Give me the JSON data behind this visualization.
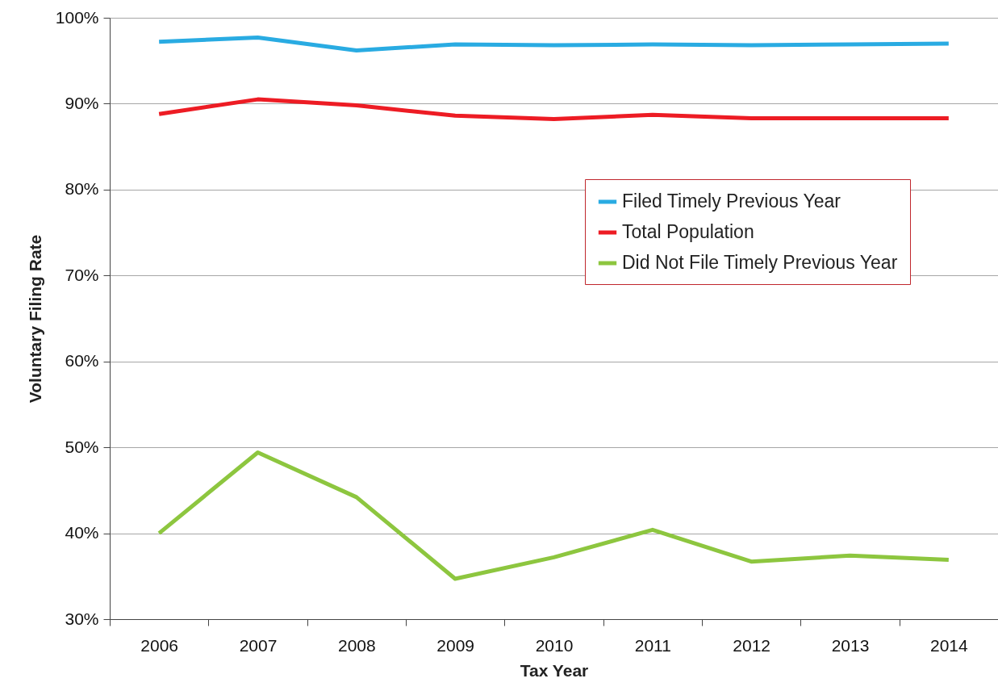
{
  "chart_data": {
    "type": "line",
    "xlabel": "Tax Year",
    "ylabel": "Voluntary Filing Rate",
    "categories": [
      "2006",
      "2007",
      "2008",
      "2009",
      "2010",
      "2011",
      "2012",
      "2013",
      "2014"
    ],
    "series": [
      {
        "name": "Filed Timely Previous Year",
        "color": "#29abe2",
        "values": [
          97.2,
          97.7,
          96.2,
          96.9,
          96.8,
          96.9,
          96.8,
          96.9,
          97.0
        ]
      },
      {
        "name": "Total Population",
        "color": "#ed1c24",
        "values": [
          88.8,
          90.5,
          89.8,
          88.6,
          88.2,
          88.7,
          88.3,
          88.3,
          88.3
        ]
      },
      {
        "name": "Did Not File Timely Previous Year",
        "color": "#8dc63f",
        "values": [
          40.0,
          49.4,
          44.2,
          34.7,
          37.2,
          40.4,
          36.7,
          37.4,
          36.9
        ]
      }
    ],
    "ylim": [
      30,
      100
    ],
    "yticks": [
      {
        "value": 30,
        "label": "30%"
      },
      {
        "value": 40,
        "label": "40%"
      },
      {
        "value": 50,
        "label": "50%"
      },
      {
        "value": 60,
        "label": "60%"
      },
      {
        "value": 70,
        "label": "70%"
      },
      {
        "value": 80,
        "label": "80%"
      },
      {
        "value": 90,
        "label": "90%"
      },
      {
        "value": 100,
        "label": "100%"
      }
    ],
    "grid": "y",
    "legend": "right",
    "marker": "none",
    "line_style": "solid"
  }
}
